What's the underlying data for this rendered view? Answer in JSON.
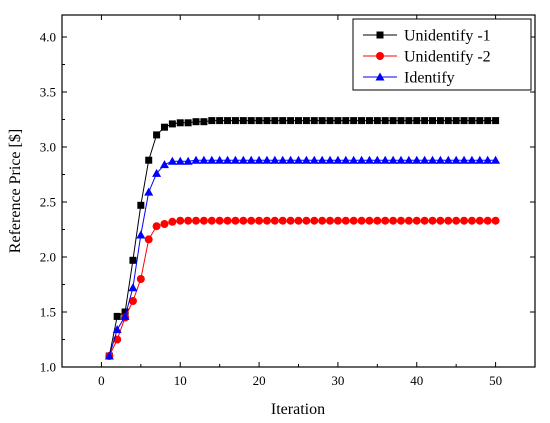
{
  "chart_data": {
    "type": "line",
    "xlabel": "Iteration",
    "ylabel": "Reference Price [$]",
    "xlim": [
      -5,
      55
    ],
    "ylim": [
      1.0,
      4.2
    ],
    "xticks": [
      "0",
      "10",
      "20",
      "30",
      "40",
      "50"
    ],
    "yticks": [
      "1.0",
      "1.5",
      "2.0",
      "2.5",
      "3.0",
      "3.5",
      "4.0"
    ],
    "legend": "top-right",
    "grid": false,
    "series": [
      {
        "name": "Unidentify -1",
        "color": "#000000",
        "marker": "square",
        "x": [
          1,
          2,
          3,
          4,
          5,
          6,
          7,
          8,
          9,
          10,
          11,
          12,
          13,
          14,
          15,
          16,
          17,
          18,
          19,
          20,
          21,
          22,
          23,
          24,
          25,
          26,
          27,
          28,
          29,
          30,
          31,
          32,
          33,
          34,
          35,
          36,
          37,
          38,
          39,
          40,
          41,
          42,
          43,
          44,
          45,
          46,
          47,
          48,
          49,
          50
        ],
        "y": [
          1.1,
          1.46,
          1.5,
          1.97,
          2.47,
          2.88,
          3.11,
          3.18,
          3.21,
          3.22,
          3.22,
          3.23,
          3.23,
          3.24,
          3.24,
          3.24,
          3.24,
          3.24,
          3.24,
          3.24,
          3.24,
          3.24,
          3.24,
          3.24,
          3.24,
          3.24,
          3.24,
          3.24,
          3.24,
          3.24,
          3.24,
          3.24,
          3.24,
          3.24,
          3.24,
          3.24,
          3.24,
          3.24,
          3.24,
          3.24,
          3.24,
          3.24,
          3.24,
          3.24,
          3.24,
          3.24,
          3.24,
          3.24,
          3.24,
          3.24
        ]
      },
      {
        "name": "Unidentify -2",
        "color": "#ff0000",
        "marker": "circle",
        "x": [
          1,
          2,
          3,
          4,
          5,
          6,
          7,
          8,
          9,
          10,
          11,
          12,
          13,
          14,
          15,
          16,
          17,
          18,
          19,
          20,
          21,
          22,
          23,
          24,
          25,
          26,
          27,
          28,
          29,
          30,
          31,
          32,
          33,
          34,
          35,
          36,
          37,
          38,
          39,
          40,
          41,
          42,
          43,
          44,
          45,
          46,
          47,
          48,
          49,
          50
        ],
        "y": [
          1.1,
          1.25,
          1.45,
          1.6,
          1.8,
          2.16,
          2.28,
          2.3,
          2.32,
          2.33,
          2.33,
          2.33,
          2.33,
          2.33,
          2.33,
          2.33,
          2.33,
          2.33,
          2.33,
          2.33,
          2.33,
          2.33,
          2.33,
          2.33,
          2.33,
          2.33,
          2.33,
          2.33,
          2.33,
          2.33,
          2.33,
          2.33,
          2.33,
          2.33,
          2.33,
          2.33,
          2.33,
          2.33,
          2.33,
          2.33,
          2.33,
          2.33,
          2.33,
          2.33,
          2.33,
          2.33,
          2.33,
          2.33,
          2.33,
          2.33
        ]
      },
      {
        "name": "Identify",
        "color": "#0000ff",
        "marker": "triangle",
        "x": [
          1,
          2,
          3,
          4,
          5,
          6,
          7,
          8,
          9,
          10,
          11,
          12,
          13,
          14,
          15,
          16,
          17,
          18,
          19,
          20,
          21,
          22,
          23,
          24,
          25,
          26,
          27,
          28,
          29,
          30,
          31,
          32,
          33,
          34,
          35,
          36,
          37,
          38,
          39,
          40,
          41,
          42,
          43,
          44,
          45,
          46,
          47,
          48,
          49,
          50
        ],
        "y": [
          1.1,
          1.34,
          1.46,
          1.72,
          2.2,
          2.59,
          2.76,
          2.84,
          2.87,
          2.87,
          2.87,
          2.88,
          2.88,
          2.88,
          2.88,
          2.88,
          2.88,
          2.88,
          2.88,
          2.88,
          2.88,
          2.88,
          2.88,
          2.88,
          2.88,
          2.88,
          2.88,
          2.88,
          2.88,
          2.88,
          2.88,
          2.88,
          2.88,
          2.88,
          2.88,
          2.88,
          2.88,
          2.88,
          2.88,
          2.88,
          2.88,
          2.88,
          2.88,
          2.88,
          2.88,
          2.88,
          2.88,
          2.88,
          2.88,
          2.88
        ]
      }
    ]
  }
}
